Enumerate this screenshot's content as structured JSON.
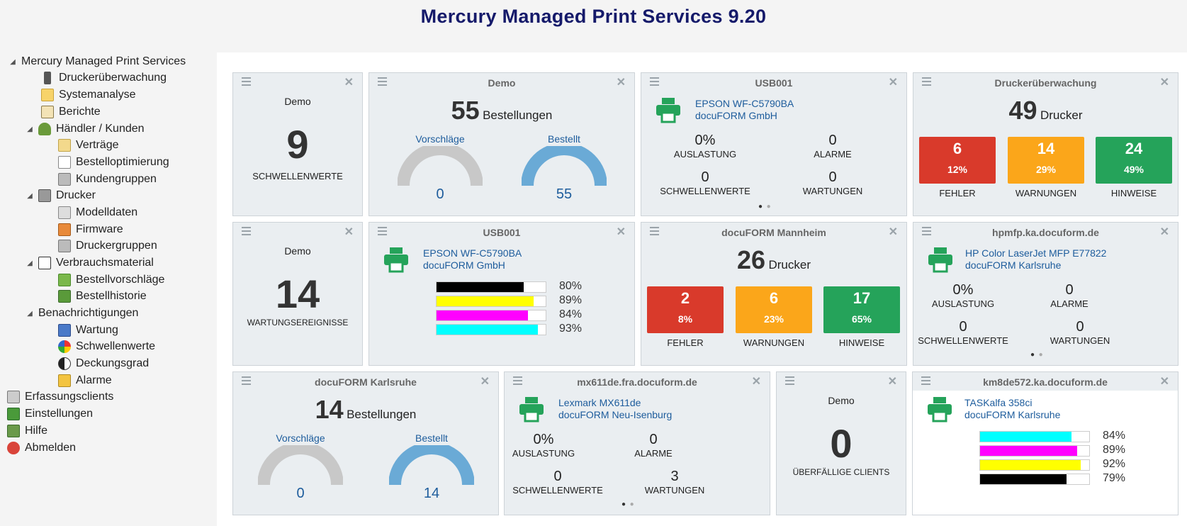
{
  "title": "Mercury Managed Print Services 9.20",
  "nav": {
    "root": "Mercury Managed Print Services",
    "druckerueberwachung": "Druckerüberwachung",
    "systemanalyse": "Systemanalyse",
    "berichte": "Berichte",
    "haendler": "Händler / Kunden",
    "vertraege": "Verträge",
    "bestelloptimierung": "Bestelloptimierung",
    "kundengruppen": "Kundengruppen",
    "drucker": "Drucker",
    "modelldaten": "Modelldaten",
    "firmware": "Firmware",
    "druckergruppen": "Druckergruppen",
    "verbrauchsmaterial": "Verbrauchsmaterial",
    "bestellvorschlaege": "Bestellvorschläge",
    "bestellhistorie": "Bestellhistorie",
    "benachrichtigungen": "Benachrichtigungen",
    "wartung": "Wartung",
    "schwellenwerte": "Schwellenwerte",
    "deckungsgrad": "Deckungsgrad",
    "alarme": "Alarme",
    "erfassungsclients": "Erfassungsclients",
    "einstellungen": "Einstellungen",
    "hilfe": "Hilfe",
    "abmelden": "Abmelden"
  },
  "w1": {
    "subtitle": "Demo",
    "value": "9",
    "caption": "SCHWELLENWERTE"
  },
  "w2": {
    "title": "Demo",
    "value": "55",
    "unit": "Bestellungen",
    "left_label": "Vorschläge",
    "right_label": "Bestellt",
    "left_value": "0",
    "right_value": "55",
    "left_fill": 0,
    "right_fill": 1
  },
  "w3": {
    "title": "USB001",
    "model": "EPSON WF-C5790BA",
    "owner": "docuFORM GmbH",
    "auslastung": "0%",
    "auslastung_label": "AUSLASTUNG",
    "alarme": "0",
    "alarme_label": "ALARME",
    "schwellen": "0",
    "schwellen_label": "SCHWELLENWERTE",
    "wartungen": "0",
    "wartungen_label": "WARTUNGEN"
  },
  "w4": {
    "title": "Druckerüberwachung",
    "value": "49",
    "unit": "Drucker",
    "boxes": [
      {
        "n": "6",
        "p": "12%",
        "label": "FEHLER"
      },
      {
        "n": "14",
        "p": "29%",
        "label": "WARNUNGEN"
      },
      {
        "n": "24",
        "p": "49%",
        "label": "HINWEISE"
      }
    ]
  },
  "w5": {
    "subtitle": "Demo",
    "value": "14",
    "caption": "WARTUNGSEREIGNISSE"
  },
  "w6": {
    "title": "USB001",
    "model": "EPSON WF-C5790BA",
    "owner": "docuFORM GmbH",
    "toner": [
      {
        "color": "#000000",
        "level": 0.8,
        "label": "80%"
      },
      {
        "color": "#ffff00",
        "level": 0.89,
        "label": "89%"
      },
      {
        "color": "#ff00ff",
        "level": 0.84,
        "label": "84%"
      },
      {
        "color": "#00ffff",
        "level": 0.93,
        "label": "93%"
      }
    ]
  },
  "w7": {
    "title": "docuFORM Mannheim",
    "value": "26",
    "unit": "Drucker",
    "boxes": [
      {
        "n": "2",
        "p": "8%",
        "label": "FEHLER"
      },
      {
        "n": "6",
        "p": "23%",
        "label": "WARNUNGEN"
      },
      {
        "n": "17",
        "p": "65%",
        "label": "HINWEISE"
      }
    ]
  },
  "w8": {
    "title": "hpmfp.ka.docuform.de",
    "model": "HP Color LaserJet MFP E77822",
    "owner": "docuFORM Karlsruhe",
    "auslastung": "0%",
    "auslastung_label": "AUSLASTUNG",
    "alarme": "0",
    "alarme_label": "ALARME",
    "schwellen": "0",
    "schwellen_label": "SCHWELLENWERTE",
    "wartungen": "0",
    "wartungen_label": "WARTUNGEN"
  },
  "w9": {
    "title": "docuFORM Karlsruhe",
    "value": "14",
    "unit": "Bestellungen",
    "left_label": "Vorschläge",
    "right_label": "Bestellt",
    "left_value": "0",
    "right_value": "14",
    "left_fill": 0,
    "right_fill": 1
  },
  "w10": {
    "title": "mx611de.fra.docuform.de",
    "model": "Lexmark MX611de",
    "owner": "docuFORM Neu-Isenburg",
    "auslastung": "0%",
    "auslastung_label": "AUSLASTUNG",
    "alarme": "0",
    "alarme_label": "ALARME",
    "schwellen": "0",
    "schwellen_label": "SCHWELLENWERTE",
    "wartungen": "3",
    "wartungen_label": "WARTUNGEN"
  },
  "w11": {
    "subtitle": "Demo",
    "value": "0",
    "caption": "ÜBERFÄLLIGE CLIENTS"
  },
  "w12": {
    "title": "km8de572.ka.docuform.de",
    "model": "TASKalfa 358ci",
    "owner": "docuFORM Karlsruhe",
    "toner": [
      {
        "color": "#00ffff",
        "level": 0.84,
        "label": "84%"
      },
      {
        "color": "#ff00ff",
        "level": 0.89,
        "label": "89%"
      },
      {
        "color": "#ffff00",
        "level": 0.92,
        "label": "92%"
      },
      {
        "color": "#000000",
        "level": 0.79,
        "label": "79%"
      }
    ]
  },
  "colors": {
    "fehler": "#d93a2b",
    "warnungen": "#fba61a",
    "hinweise": "#25a35a",
    "printer": "#25a35a",
    "gauge_empty": "#c8c8c8",
    "gauge_full": "#6aaad6",
    "link": "#1d5c9c"
  }
}
